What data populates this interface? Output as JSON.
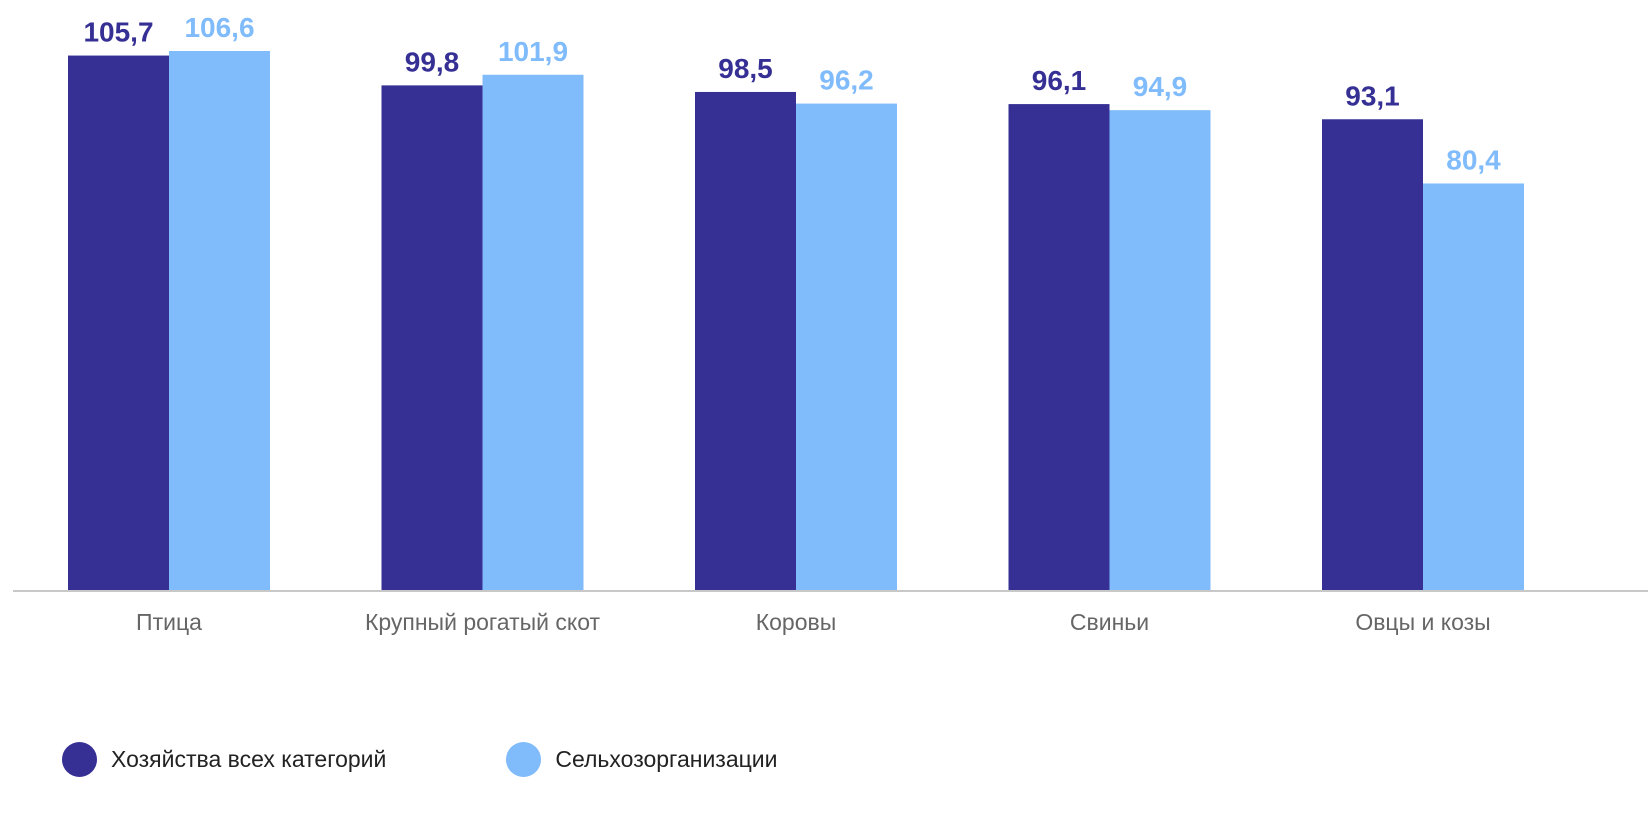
{
  "chart_data": {
    "type": "bar",
    "categories": [
      "Птица",
      "Крупный рогатый скот",
      "Коровы",
      "Свиньи",
      "Овцы и козы"
    ],
    "series": [
      {
        "name": "Хозяйства всех категорий",
        "values": [
          105.7,
          99.8,
          98.5,
          96.1,
          93.1
        ],
        "labels": [
          "105,7",
          "99,8",
          "98,5",
          "96,1",
          "93,1"
        ],
        "color": "#363095"
      },
      {
        "name": "Сельхозорганизации",
        "values": [
          106.6,
          101.9,
          96.2,
          94.9,
          80.4
        ],
        "labels": [
          "106,6",
          "101,9",
          "96,2",
          "94,9",
          "80,4"
        ],
        "color": "#80bbfb"
      }
    ],
    "ylim": [
      0,
      106.6
    ],
    "grid": false,
    "legend_position": "bottom-left",
    "axis_color": "#c8c8c8",
    "category_label_color": "#666666"
  }
}
